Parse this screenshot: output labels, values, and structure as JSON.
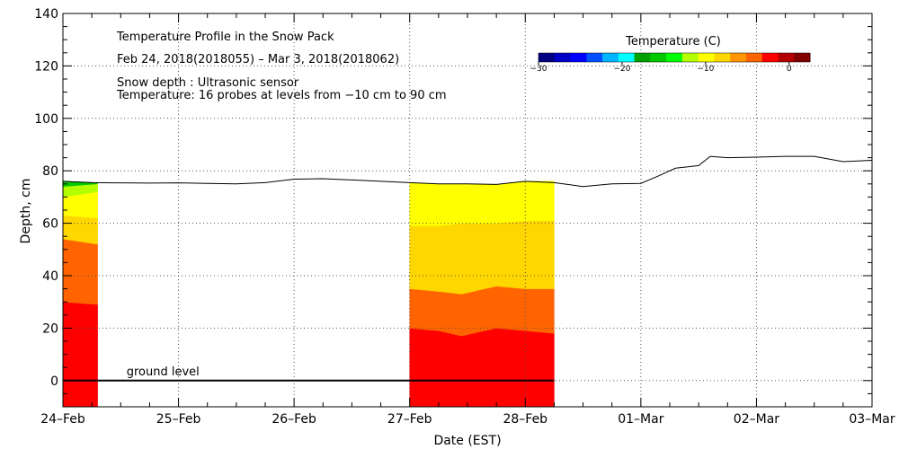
{
  "chart_data": {
    "type": "area",
    "title": "Temperature Profile in the Snow Pack",
    "subtitle": "Feb 24, 2018(2018055) – Mar  3, 2018(2018062)",
    "notes": [
      "Snow depth : Ultrasonic sensor",
      "Temperature: 16 probes at levels from −10 cm to 90 cm"
    ],
    "xlabel": "Date (EST)",
    "ylabel": "Depth, cm",
    "xlim": [
      0,
      7
    ],
    "ylim": [
      -10,
      140
    ],
    "grid": true,
    "x_ticks": [
      {
        "value": 0,
        "label": "24–Feb"
      },
      {
        "value": 1,
        "label": "25–Feb"
      },
      {
        "value": 2,
        "label": "26–Feb"
      },
      {
        "value": 3,
        "label": "27–Feb"
      },
      {
        "value": 4,
        "label": "28–Feb"
      },
      {
        "value": 5,
        "label": "01–Mar"
      },
      {
        "value": 6,
        "label": "02–Mar"
      },
      {
        "value": 7,
        "label": "03–Mar"
      }
    ],
    "y_ticks": [
      0,
      20,
      40,
      60,
      80,
      100,
      120,
      140
    ],
    "colorbar": {
      "title": "Temperature (C)",
      "min": -30,
      "max": 2.5,
      "ticks": [
        {
          "value": -30,
          "label": "−30"
        },
        {
          "value": -20,
          "label": "−20"
        },
        {
          "value": -10,
          "label": "−10"
        },
        {
          "value": 0,
          "label": "0"
        }
      ],
      "colors": [
        "#000080",
        "#0000c8",
        "#0000ff",
        "#0050ff",
        "#00b4ff",
        "#00ffff",
        "#00a000",
        "#00c800",
        "#00ff00",
        "#b4ff00",
        "#ffff00",
        "#ffd700",
        "#ff9600",
        "#ff6400",
        "#ff0000",
        "#b40000",
        "#800000"
      ]
    },
    "ground_level": {
      "value": 0,
      "label": "ground level"
    },
    "snow_depth": {
      "name": "Snow depth",
      "x": [
        0,
        0.25,
        0.5,
        0.75,
        1.0,
        1.25,
        1.5,
        1.75,
        2.0,
        2.25,
        2.5,
        2.75,
        3.0,
        3.25,
        3.5,
        3.75,
        4.0,
        4.25,
        4.5,
        4.75,
        5.0,
        5.15,
        5.3,
        5.5,
        5.6,
        5.75,
        6.0,
        6.25,
        6.5,
        6.75,
        7.0
      ],
      "y": [
        76,
        75.5,
        75.4,
        75.3,
        75.4,
        75.2,
        75,
        75.5,
        76.8,
        77,
        76.5,
        76,
        75.5,
        75,
        75,
        74.8,
        76,
        75.5,
        74,
        75,
        75.2,
        78,
        81,
        82,
        85.5,
        85,
        85.2,
        85.5,
        85.5,
        83.5,
        84
      ]
    },
    "temperature_segments": [
      {
        "x_start": 0.0,
        "x_end": 0.3,
        "x": [
          0,
          0.3
        ],
        "bands": [
          {
            "color": "#ff0000",
            "lower": [
              -10,
              -10
            ],
            "upper": [
              30,
              29
            ]
          },
          {
            "color": "#ff6400",
            "lower": [
              30,
              29
            ],
            "upper": [
              54,
              52
            ]
          },
          {
            "color": "#ffd700",
            "lower": [
              54,
              52
            ],
            "upper": [
              63,
              62
            ]
          },
          {
            "color": "#ffff00",
            "lower": [
              63,
              62
            ],
            "upper": [
              70,
              72
            ]
          },
          {
            "color": "#b4ff00",
            "lower": [
              70,
              72
            ],
            "upper": [
              74,
              75
            ]
          },
          {
            "color": "#00c800",
            "lower": [
              74,
              75
            ],
            "upper": [
              76,
              75.5
            ]
          }
        ]
      },
      {
        "x_start": 3.0,
        "x_end": 4.25,
        "x": [
          3.0,
          3.25,
          3.45,
          3.75,
          4.0,
          4.25
        ],
        "bands": [
          {
            "color": "#ff0000",
            "lower": [
              -10,
              -10,
              -10,
              -10,
              -10,
              -10
            ],
            "upper": [
              20,
              19,
              17,
              20,
              19,
              18
            ]
          },
          {
            "color": "#ff6400",
            "lower": [
              20,
              19,
              17,
              20,
              19,
              18
            ],
            "upper": [
              35,
              34,
              33,
              36,
              35,
              35
            ]
          },
          {
            "color": "#ffd700",
            "lower": [
              35,
              34,
              33,
              36,
              35,
              35
            ],
            "upper": [
              59,
              59,
              60,
              60,
              61,
              61
            ]
          },
          {
            "color": "#ffff00",
            "lower": [
              59,
              59,
              60,
              60,
              61,
              61
            ],
            "upper": [
              75.5,
              75,
              75,
              74.8,
              76,
              76
            ]
          }
        ]
      }
    ]
  }
}
